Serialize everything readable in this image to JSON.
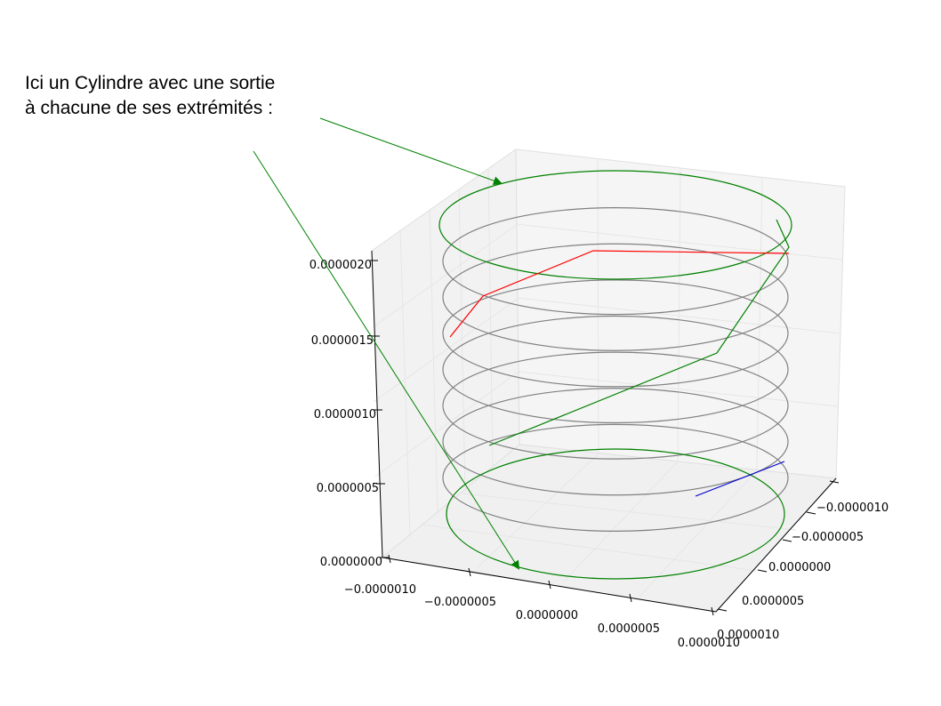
{
  "annotation": {
    "line1": "Ici un Cylindre avec une sortie",
    "line2": "à chacune de ses extrémités :"
  },
  "chart_data": {
    "type": "3d-line",
    "title": "",
    "grid": true,
    "colors": {
      "helix": "#808080",
      "cap_circles": "#008000",
      "exit_top": "#ff0000",
      "exit_side": "#008000",
      "exit_bottom": "#0000cc",
      "arrow": "#008000",
      "pane": "#f2f2f2",
      "grid": "#e6e6e6"
    },
    "z_ticks": [
      "0.0000000",
      "0.0000005",
      "0.0000010",
      "0.0000015",
      "0.0000020"
    ],
    "x_ticks": [
      "−0.0000010",
      "−0.0000005",
      "0.0000000",
      "0.0000005",
      "0.0000010"
    ],
    "y_ticks": [
      "−0.0000010",
      "−0.0000005",
      "0.0000000",
      "0.0000005",
      "0.0000010"
    ],
    "helix_rings": 9,
    "series": [
      {
        "label": "helix (grey)",
        "kind": "stack of circles"
      },
      {
        "label": "top cap",
        "kind": "circle"
      },
      {
        "label": "bottom cap",
        "kind": "circle"
      },
      {
        "label": "red exit",
        "kind": "polyline"
      },
      {
        "label": "green exit",
        "kind": "polyline"
      },
      {
        "label": "blue exit",
        "kind": "segment"
      }
    ]
  }
}
